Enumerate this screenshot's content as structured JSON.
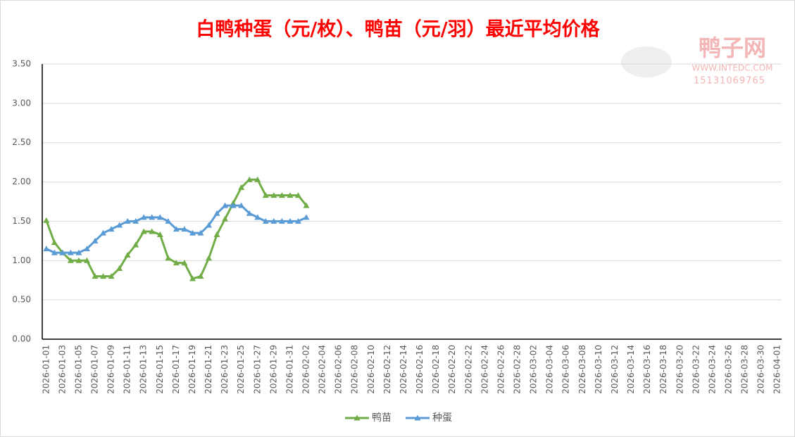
{
  "chart_data": {
    "type": "line",
    "title": "白鸭种蛋（元/枚）、鸭苗（元/羽）最近平均价格",
    "watermark": {
      "brand": "鸭子网",
      "site": "WWW.INTEDC.COM",
      "phone": "15131069765"
    },
    "categories": [
      "2026-01-01",
      null,
      "2026-01-03",
      null,
      "2026-01-05",
      null,
      "2026-01-07",
      null,
      "2026-01-09",
      null,
      "2026-01-11",
      null,
      "2026-01-13",
      null,
      "2026-01-15",
      null,
      "2026-01-17",
      null,
      "2026-01-19",
      null,
      "2026-01-21",
      null,
      "2026-01-23",
      null,
      "2026-01-25",
      null,
      "2026-01-27",
      null,
      "2026-01-29",
      null,
      "2026-01-31",
      null,
      "2026-02-02",
      null,
      "2026-02-04",
      null,
      "2026-02-06",
      null,
      "2026-02-08",
      null,
      "2026-02-10",
      null,
      "2026-02-12",
      null,
      "2026-02-14",
      null,
      "2026-02-16",
      null,
      "2026-02-18",
      null,
      "2026-02-20",
      null,
      "2026-02-22",
      null,
      "2026-02-24",
      null,
      "2026-02-26",
      null,
      "2026-02-28",
      null,
      "2026-03-02",
      null,
      "2026-03-04",
      null,
      "2026-03-06",
      null,
      "2026-03-08",
      null,
      "2026-03-10",
      null,
      "2026-03-12",
      null,
      "2026-03-14",
      null,
      "2026-03-16",
      null,
      "2026-03-18",
      null,
      "2026-03-20",
      null,
      "2026-03-22",
      null,
      "2026-03-24",
      null,
      "2026-03-26",
      null,
      "2026-03-28",
      null,
      "2026-03-30",
      null,
      "2026-04-01"
    ],
    "series": [
      {
        "name": "鸭苗",
        "color": "#70ad47",
        "values": [
          1.51,
          1.23,
          1.1,
          1.0,
          1.0,
          1.0,
          0.8,
          0.8,
          0.8,
          0.9,
          1.07,
          1.2,
          1.37,
          1.37,
          1.33,
          1.03,
          0.97,
          0.97,
          0.77,
          0.8,
          1.03,
          1.33,
          1.53,
          1.73,
          1.93,
          2.03,
          2.03,
          1.83,
          1.83,
          1.83,
          1.83,
          1.83,
          1.7,
          null,
          null,
          null,
          null,
          null,
          null,
          null,
          null,
          null,
          null,
          null,
          null,
          null,
          null,
          null,
          null,
          null,
          null,
          null,
          null,
          null,
          null,
          null,
          null,
          null,
          null,
          null,
          null,
          null,
          null,
          null,
          null,
          null,
          null,
          null,
          null,
          null,
          null,
          null,
          null,
          null,
          null,
          null,
          null,
          null,
          null,
          null,
          null,
          null,
          null,
          null,
          null,
          null,
          null,
          null,
          null,
          null,
          null
        ]
      },
      {
        "name": "种蛋",
        "color": "#5b9bd5",
        "values": [
          1.15,
          1.1,
          1.1,
          1.1,
          1.1,
          1.15,
          1.25,
          1.35,
          1.4,
          1.45,
          1.5,
          1.5,
          1.55,
          1.55,
          1.55,
          1.5,
          1.4,
          1.4,
          1.35,
          1.35,
          1.45,
          1.6,
          1.7,
          1.7,
          1.7,
          1.6,
          1.55,
          1.5,
          1.5,
          1.5,
          1.5,
          1.5,
          1.55,
          null,
          null,
          null,
          null,
          null,
          null,
          null,
          null,
          null,
          null,
          null,
          null,
          null,
          null,
          null,
          null,
          null,
          null,
          null,
          null,
          null,
          null,
          null,
          null,
          null,
          null,
          null,
          null,
          null,
          null,
          null,
          null,
          null,
          null,
          null,
          null,
          null,
          null,
          null,
          null,
          null,
          null,
          null,
          null,
          null,
          null,
          null,
          null,
          null,
          null,
          null,
          null,
          null,
          null,
          null,
          null,
          null,
          null
        ]
      }
    ],
    "ylim": [
      0,
      3.5
    ],
    "yticks": [
      {
        "value": 0,
        "label": "0.00"
      },
      {
        "value": 0.5,
        "label": "0.50"
      },
      {
        "value": 1,
        "label": "1.00"
      },
      {
        "value": 1.5,
        "label": "1.50"
      },
      {
        "value": 2,
        "label": "2.00"
      },
      {
        "value": 2.5,
        "label": "2.50"
      },
      {
        "value": 3,
        "label": "3.00"
      },
      {
        "value": 3.5,
        "label": "3.50"
      }
    ],
    "grid": true,
    "legend": "bottom"
  }
}
